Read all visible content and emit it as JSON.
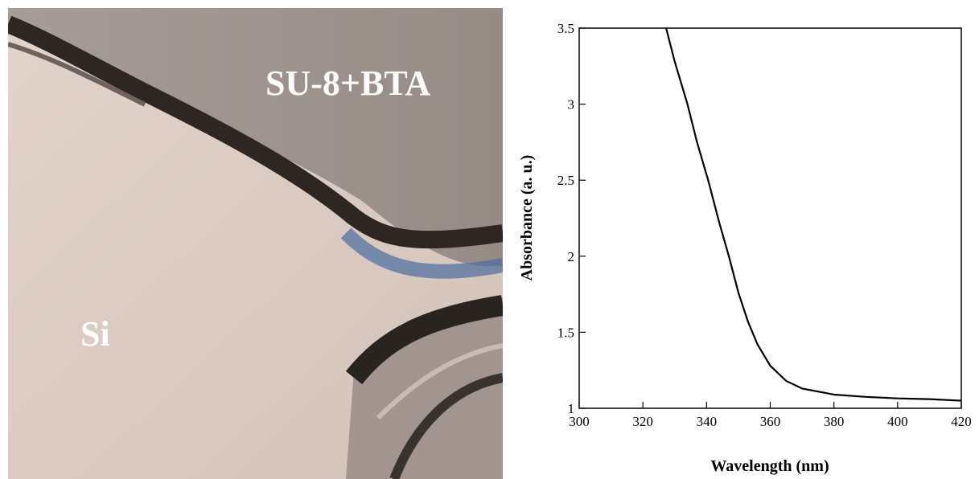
{
  "image": {
    "labels": [
      "SU-8+BTA",
      "Si"
    ]
  },
  "chart_data": {
    "type": "line",
    "x_label": "Wavelength (nm)",
    "y_label": "Absorbance (a. u.)",
    "xlim": [
      300,
      420
    ],
    "xticks": [
      300,
      320,
      340,
      360,
      380,
      400,
      420
    ],
    "ylim": [
      1,
      3.5
    ],
    "yticks": [
      1,
      1.5,
      2,
      2.5,
      3,
      3.5
    ],
    "series": [
      {
        "color": "#000000",
        "x": [
          327.3,
          330,
          334,
          337,
          340.5,
          344,
          347,
          350,
          353,
          356,
          360,
          365,
          370,
          380,
          390,
          400,
          410,
          420
        ],
        "values": [
          3.5,
          3.28,
          3.0,
          2.75,
          2.5,
          2.22,
          2.0,
          1.76,
          1.57,
          1.42,
          1.28,
          1.18,
          1.13,
          1.09,
          1.075,
          1.065,
          1.06,
          1.05
        ]
      }
    ]
  }
}
